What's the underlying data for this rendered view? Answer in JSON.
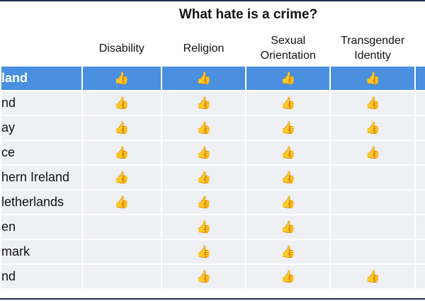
{
  "title": "What hate is a crime?",
  "table": {
    "columns": [
      "Disability",
      "Religion",
      "Sexual\nOrientation",
      "Transgender\nIdentity"
    ],
    "rows": [
      {
        "name": "land",
        "cells": [
          "👍",
          "👍",
          "👍",
          "👍"
        ]
      },
      {
        "name": "nd",
        "cells": [
          "👍",
          "👍",
          "👍",
          "👍"
        ]
      },
      {
        "name": "ay",
        "cells": [
          "👍",
          "👍",
          "👍",
          "👍"
        ]
      },
      {
        "name": "ce",
        "cells": [
          "👍",
          "👍",
          "👍",
          "👍"
        ]
      },
      {
        "name": "hern Ireland",
        "cells": [
          "👍",
          "👍",
          "👍",
          null
        ]
      },
      {
        "name": "letherlands",
        "cells": [
          "👍",
          "👍",
          "👍",
          null
        ]
      },
      {
        "name": "en",
        "cells": [
          null,
          "👍",
          "👍",
          null
        ]
      },
      {
        "name": "mark",
        "cells": [
          null,
          "👍",
          "👍",
          null
        ]
      },
      {
        "name": "nd",
        "cells": [
          null,
          "👍",
          "👍",
          "👍"
        ]
      }
    ]
  }
}
